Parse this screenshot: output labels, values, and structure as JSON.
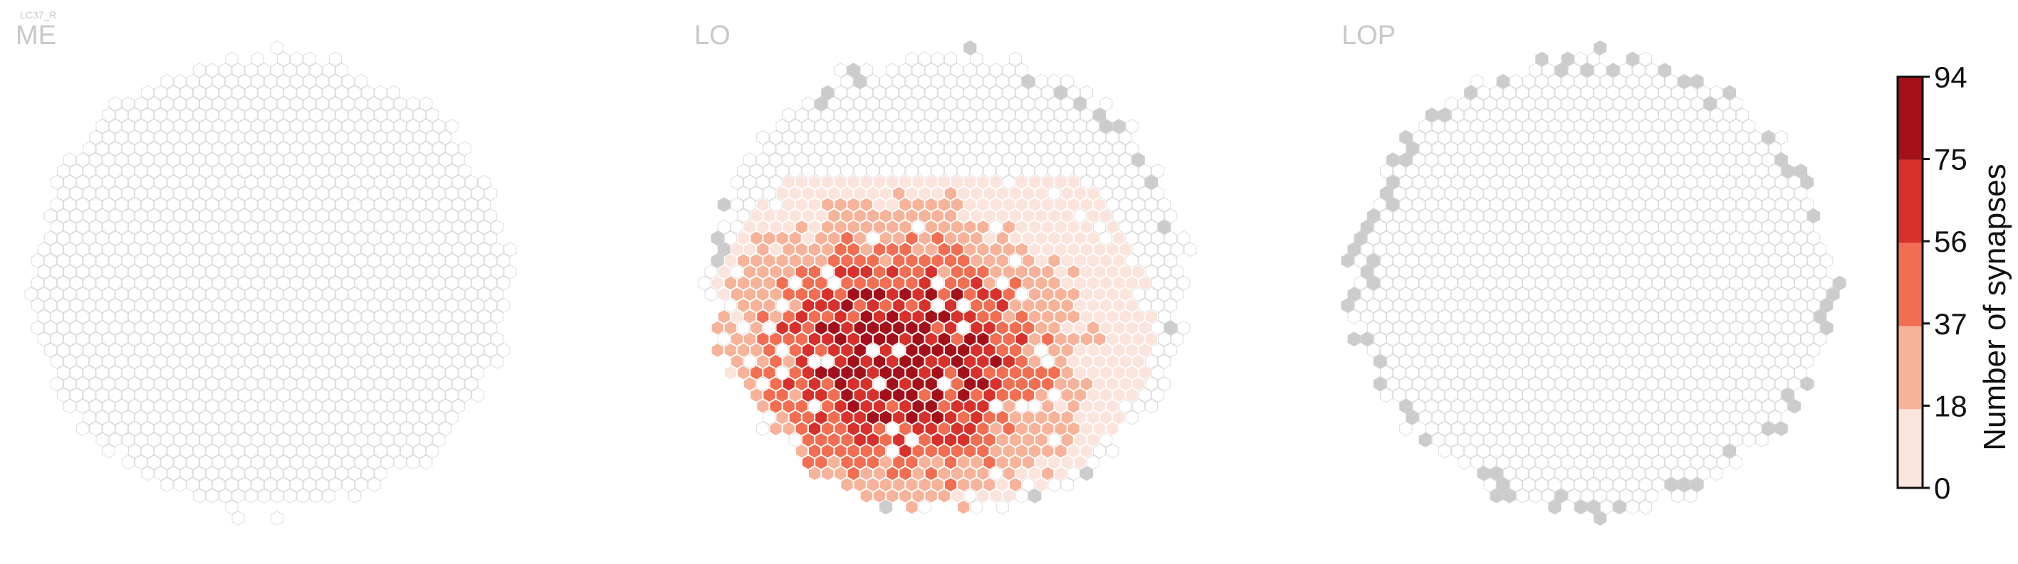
{
  "figure": {
    "cell_type_label": "LC37_R",
    "panels": [
      {
        "name": "ME"
      },
      {
        "name": "LO"
      },
      {
        "name": "LOP"
      }
    ]
  },
  "chart_data": {
    "type": "heatmap",
    "description_kind": "hexagonal column map per neuropil",
    "colorbar": {
      "label": "Number of synapses",
      "ticks": [
        "0",
        "18",
        "37",
        "56",
        "75",
        "94"
      ],
      "bins": [
        {
          "min": 0,
          "max": 18,
          "color": "#fbe4dc"
        },
        {
          "min": 18,
          "max": 37,
          "color": "#f7b39a"
        },
        {
          "min": 37,
          "max": 56,
          "color": "#f26e52"
        },
        {
          "min": 56,
          "max": 75,
          "color": "#d8302a"
        },
        {
          "min": 75,
          "max": 94,
          "color": "#a4101a"
        }
      ]
    },
    "colors": {
      "empty_cell_stroke": "#dcdcdc",
      "empty_cell_fill": "#ffffff",
      "outside_cell_fill": "#cccccc",
      "synapse_cell_stroke": "#ffffff"
    },
    "neuropils": [
      {
        "name": "ME",
        "max_synapses": 0,
        "note": "no synapses"
      },
      {
        "name": "LO",
        "max_synapses": 94
      },
      {
        "name": "LOP",
        "max_synapses": 0,
        "note": "no synapses, boundary columns grey"
      }
    ]
  }
}
